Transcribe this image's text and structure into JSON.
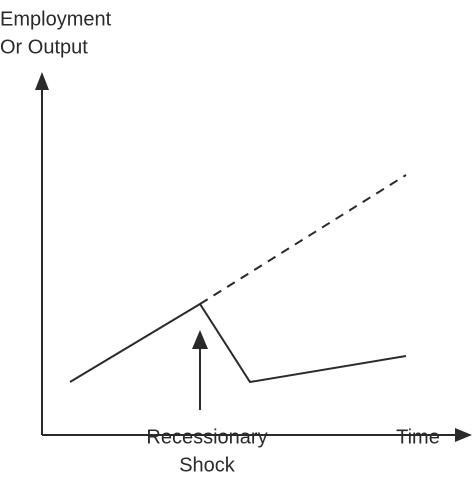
{
  "axes": {
    "y_label": [
      "Employment",
      "Or Output"
    ],
    "x_label": "Time"
  },
  "annotation": {
    "label": [
      "Recessionary",
      "Shock"
    ]
  }
}
